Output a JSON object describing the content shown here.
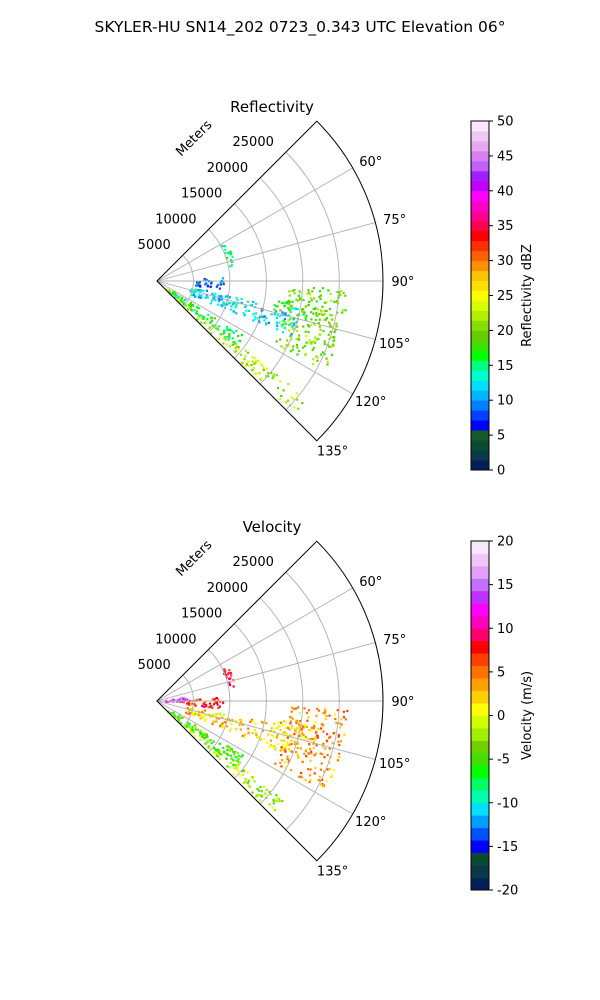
{
  "figure": {
    "title": "SKYLER-HU  SN14_202  0723_0.343 UTC Elevation 06°"
  },
  "chart_data": [
    {
      "type": "polar-sector",
      "title": "Reflectivity",
      "range_label": "Meters",
      "range_ticks": [
        5000,
        10000,
        15000,
        20000,
        25000
      ],
      "range_max": 31000,
      "azimuth_ticks": [
        60,
        75,
        90,
        105,
        120,
        135
      ],
      "azimuth_tick_labels": [
        "60°",
        "75°",
        "90°",
        "105°",
        "120°",
        "135°"
      ],
      "azimuth_range": [
        45,
        135
      ],
      "grid": true,
      "colorbar": {
        "label": "Reflectivity dBZ",
        "min": 0,
        "max": 50,
        "ticks": [
          0,
          5,
          10,
          15,
          20,
          25,
          30,
          35,
          40,
          45,
          50
        ],
        "colors": [
          "#001f5b",
          "#0a3a4a",
          "#0a4a30",
          "#145a2a",
          "#0000ff",
          "#0040ff",
          "#0080ff",
          "#00b4ff",
          "#00e0ff",
          "#00ffd0",
          "#00ff80",
          "#00ff00",
          "#40e000",
          "#66cc00",
          "#88dd00",
          "#b0f000",
          "#d8ff00",
          "#ffff00",
          "#ffe000",
          "#ffc000",
          "#ff9000",
          "#ff6000",
          "#ff3000",
          "#ff0000",
          "#ff0050",
          "#ff0090",
          "#ff00c8",
          "#ff00ff",
          "#c000ff",
          "#a020ff",
          "#c060ff",
          "#d880f0",
          "#e8a8f0",
          "#f0c8f8",
          "#f8e8ff"
        ]
      },
      "echo_bands": [
        {
          "az_start": 128,
          "az_end": 134,
          "r_start": 1500,
          "r_end": 26500,
          "value": 21
        },
        {
          "az_start": 122,
          "az_end": 130,
          "r_start": 2500,
          "r_end": 14000,
          "value": 16
        },
        {
          "az_start": 100,
          "az_end": 112,
          "r_start": 4000,
          "r_end": 20000,
          "value": 12
        },
        {
          "az_start": 86,
          "az_end": 96,
          "r_start": 5000,
          "r_end": 9000,
          "value": 8
        },
        {
          "az_start": 60,
          "az_end": 80,
          "r_start": 9800,
          "r_end": 10800,
          "value": 15
        },
        {
          "az_start": 98,
          "az_end": 104,
          "r_start": 16000,
          "r_end": 23000,
          "value": 18
        },
        {
          "az_start": 92,
          "az_end": 118,
          "r_start": 18000,
          "r_end": 26000,
          "value": 20
        }
      ]
    },
    {
      "type": "polar-sector",
      "title": "Velocity",
      "range_label": "Meters",
      "range_ticks": [
        5000,
        10000,
        15000,
        20000,
        25000
      ],
      "range_max": 31000,
      "azimuth_ticks": [
        60,
        75,
        90,
        105,
        120,
        135
      ],
      "azimuth_tick_labels": [
        "60°",
        "75°",
        "90°",
        "105°",
        "120°",
        "135°"
      ],
      "azimuth_range": [
        45,
        135
      ],
      "grid": true,
      "colorbar": {
        "label": "Velocity (m/s)",
        "min": -20,
        "max": 20,
        "ticks": [
          -20,
          -15,
          -10,
          -5,
          0,
          5,
          10,
          15,
          20
        ],
        "colors": [
          "#001f5b",
          "#0a3a4a",
          "#0a4a30",
          "#0000ff",
          "#0050ff",
          "#00a0ff",
          "#00e0ff",
          "#00ffb0",
          "#00ff60",
          "#00ff00",
          "#40e000",
          "#70d000",
          "#a0f000",
          "#d0ff00",
          "#ffff00",
          "#ffd000",
          "#ffa000",
          "#ff7000",
          "#ff4000",
          "#ff0000",
          "#ff0070",
          "#ff00c0",
          "#ff00ff",
          "#c030ff",
          "#c070ff",
          "#e0a0f8",
          "#f0c8f8",
          "#f8e8ff"
        ]
      },
      "echo_bands": [
        {
          "az_start": 128,
          "az_end": 134,
          "r_start": 1500,
          "r_end": 22000,
          "value": -2
        },
        {
          "az_start": 122,
          "az_end": 130,
          "r_start": 2500,
          "r_end": 14000,
          "value": -5
        },
        {
          "az_start": 100,
          "az_end": 112,
          "r_start": 4000,
          "r_end": 20000,
          "value": 2
        },
        {
          "az_start": 86,
          "az_end": 96,
          "r_start": 3000,
          "r_end": 9000,
          "value": 7
        },
        {
          "az_start": 60,
          "az_end": 80,
          "r_start": 9800,
          "r_end": 10800,
          "value": 9
        },
        {
          "az_start": 98,
          "az_end": 104,
          "r_start": 16000,
          "r_end": 23000,
          "value": 3
        },
        {
          "az_start": 92,
          "az_end": 118,
          "r_start": 18000,
          "r_end": 26000,
          "value": 4
        },
        {
          "az_start": 80,
          "az_end": 90,
          "r_start": 1000,
          "r_end": 4000,
          "value": 14
        }
      ]
    }
  ]
}
